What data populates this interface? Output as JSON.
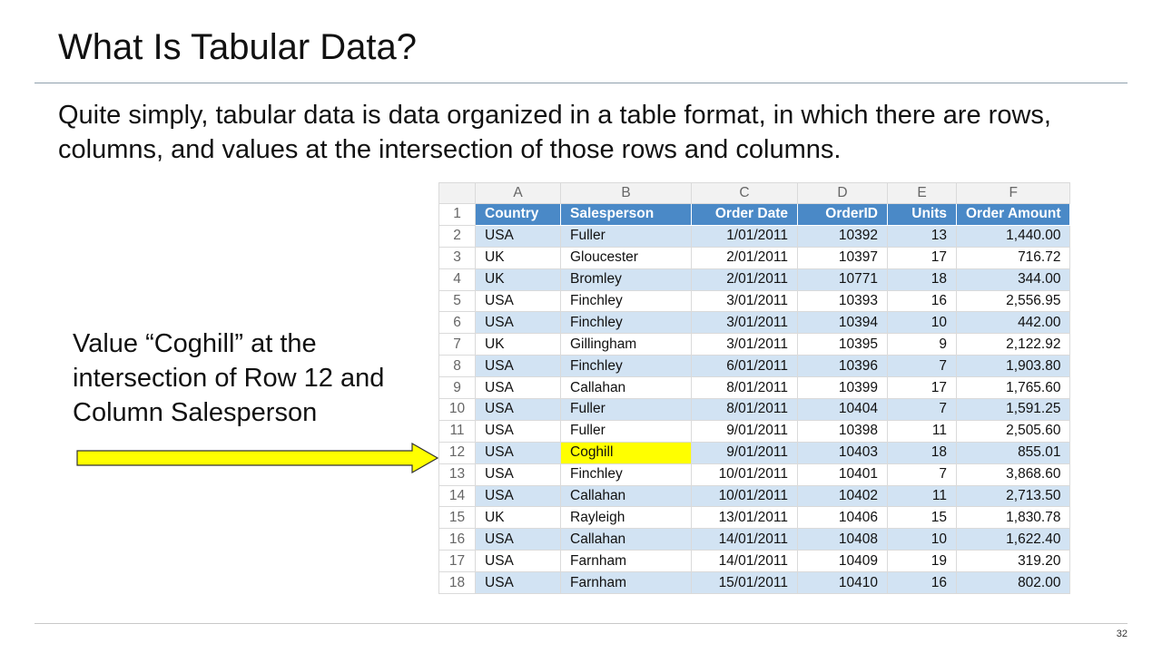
{
  "slide": {
    "title": "What Is Tabular Data?",
    "intro": "Quite simply, tabular data is data organized in a table format, in which there are rows, columns, and values at the intersection of those rows and columns.",
    "callout": "Value “Coghill” at the intersection of Row 12 and Column Salesperson",
    "page_number": "32"
  },
  "colors": {
    "header_fill": "#4a89c7",
    "band_fill": "#d2e3f3",
    "highlight_fill": "#ffff00",
    "arrow_fill": "#ffff00"
  },
  "sheet": {
    "column_letters": [
      "A",
      "B",
      "C",
      "D",
      "E",
      "F"
    ],
    "header_row_number": "1",
    "headers": [
      "Country",
      "Salesperson",
      "Order Date",
      "OrderID",
      "Units",
      "Order Amount"
    ],
    "highlight": {
      "row_number": "12",
      "column": "Salesperson"
    },
    "rows": [
      {
        "num": "2",
        "cells": [
          "USA",
          "Fuller",
          "1/01/2011",
          "10392",
          "13",
          "1,440.00"
        ]
      },
      {
        "num": "3",
        "cells": [
          "UK",
          "Gloucester",
          "2/01/2011",
          "10397",
          "17",
          "716.72"
        ]
      },
      {
        "num": "4",
        "cells": [
          "UK",
          "Bromley",
          "2/01/2011",
          "10771",
          "18",
          "344.00"
        ]
      },
      {
        "num": "5",
        "cells": [
          "USA",
          "Finchley",
          "3/01/2011",
          "10393",
          "16",
          "2,556.95"
        ]
      },
      {
        "num": "6",
        "cells": [
          "USA",
          "Finchley",
          "3/01/2011",
          "10394",
          "10",
          "442.00"
        ]
      },
      {
        "num": "7",
        "cells": [
          "UK",
          "Gillingham",
          "3/01/2011",
          "10395",
          "9",
          "2,122.92"
        ]
      },
      {
        "num": "8",
        "cells": [
          "USA",
          "Finchley",
          "6/01/2011",
          "10396",
          "7",
          "1,903.80"
        ]
      },
      {
        "num": "9",
        "cells": [
          "USA",
          "Callahan",
          "8/01/2011",
          "10399",
          "17",
          "1,765.60"
        ]
      },
      {
        "num": "10",
        "cells": [
          "USA",
          "Fuller",
          "8/01/2011",
          "10404",
          "7",
          "1,591.25"
        ]
      },
      {
        "num": "11",
        "cells": [
          "USA",
          "Fuller",
          "9/01/2011",
          "10398",
          "11",
          "2,505.60"
        ]
      },
      {
        "num": "12",
        "cells": [
          "USA",
          "Coghill",
          "9/01/2011",
          "10403",
          "18",
          "855.01"
        ]
      },
      {
        "num": "13",
        "cells": [
          "USA",
          "Finchley",
          "10/01/2011",
          "10401",
          "7",
          "3,868.60"
        ]
      },
      {
        "num": "14",
        "cells": [
          "USA",
          "Callahan",
          "10/01/2011",
          "10402",
          "11",
          "2,713.50"
        ]
      },
      {
        "num": "15",
        "cells": [
          "UK",
          "Rayleigh",
          "13/01/2011",
          "10406",
          "15",
          "1,830.78"
        ]
      },
      {
        "num": "16",
        "cells": [
          "USA",
          "Callahan",
          "14/01/2011",
          "10408",
          "10",
          "1,622.40"
        ]
      },
      {
        "num": "17",
        "cells": [
          "USA",
          "Farnham",
          "14/01/2011",
          "10409",
          "19",
          "319.20"
        ]
      },
      {
        "num": "18",
        "cells": [
          "USA",
          "Farnham",
          "15/01/2011",
          "10410",
          "16",
          "802.00"
        ]
      }
    ]
  }
}
